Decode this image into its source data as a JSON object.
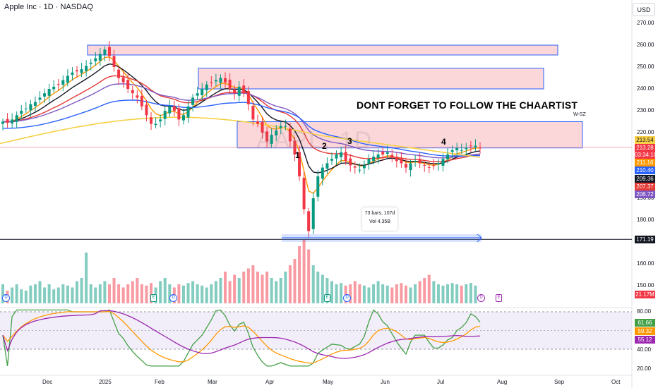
{
  "header": {
    "symbol_title": "Apple Inc · 1D · NASDAQ",
    "currency": "USD"
  },
  "annotations": {
    "promo": "DONT FORGET TO FOLLOW THE CHAARTIST",
    "ws_tag": "W-SZ",
    "watermark": "AAPL, 1D"
  },
  "waves": [
    "1",
    "2",
    "3",
    "4"
  ],
  "measure": {
    "bars": "73 bars, 107d",
    "vol": "Vol 4.35B"
  },
  "price_axis": {
    "ticks": [
      "270.00",
      "260.00",
      "250.00",
      "240.00",
      "230.00",
      "220.00",
      "190.00",
      "180.00",
      "160.00",
      "150.00"
    ]
  },
  "price_tags": [
    {
      "text": "213.54",
      "color": "#f7d046"
    },
    {
      "text": "213.28",
      "color": "#f23645"
    },
    {
      "text": "03:34:18",
      "color": "#f23645"
    },
    {
      "text": "211.16",
      "color": "#ff9800"
    },
    {
      "text": "210.40",
      "color": "#2962ff"
    },
    {
      "text": "209.36",
      "color": "#131722"
    },
    {
      "text": "207.37",
      "color": "#e53935"
    },
    {
      "text": "206.72",
      "color": "#7e57c2"
    },
    {
      "text": "171.19",
      "color": "#131722"
    },
    {
      "text": "21.17M",
      "color": "#f23645"
    }
  ],
  "rsi_axis": {
    "ticks": [
      "80.00",
      "40.00",
      "20.00"
    ]
  },
  "rsi_tags": [
    {
      "text": "61.66",
      "color": "#43a047"
    },
    {
      "text": "59.32",
      "color": "#ff9800"
    },
    {
      "text": "55.12",
      "color": "#9c27b0"
    }
  ],
  "time_axis": {
    "ticks": [
      "Dec",
      "2025",
      "Feb",
      "Mar",
      "Apr",
      "May",
      "Jun",
      "Jul",
      "Aug",
      "Sep",
      "Oct"
    ]
  },
  "events": {
    "dividend": "D",
    "earnings": "E"
  },
  "colors": {
    "up": "#089981",
    "down": "#f23645",
    "zone_fill": "rgba(242,54,69,0.2)",
    "zone_border": "#2962ff",
    "rsi_band": "rgba(126,87,194,0.1)"
  },
  "chart_data": {
    "type": "candlestick",
    "ylim": [
      165,
      275
    ],
    "horizontal_line": 171.19,
    "supply_zones": [
      [
        255.5,
        260
      ],
      [
        240,
        249.5
      ],
      [
        213,
        225
      ]
    ],
    "waves_price": [
      {
        "label": "1",
        "x": 60,
        "y": 204
      },
      {
        "label": "2",
        "x": 64,
        "y": 210
      },
      {
        "label": "3",
        "x": 68,
        "y": 213
      },
      {
        "label": "4",
        "x": 85,
        "y": 215
      }
    ],
    "close": [
      225,
      224.5,
      226,
      228,
      230,
      231,
      233,
      234,
      236,
      238,
      240,
      241,
      242,
      244,
      246,
      247.5,
      248,
      249,
      250.5,
      252,
      254,
      256,
      258,
      255,
      250,
      245,
      243,
      240,
      238,
      236,
      232,
      228,
      224,
      224,
      226,
      230,
      232,
      230,
      226,
      228,
      232,
      236,
      238,
      240,
      242,
      243,
      244,
      245,
      243,
      240,
      238,
      241,
      238,
      233,
      226,
      224,
      220,
      216,
      219,
      221,
      223,
      223,
      216,
      210,
      200,
      185,
      175,
      190,
      200,
      204,
      206,
      208,
      210,
      211,
      207,
      205,
      204,
      203,
      205,
      208,
      209,
      210,
      210,
      211,
      209,
      207,
      206,
      204,
      206,
      207,
      206,
      205,
      204,
      205,
      206,
      208,
      210,
      212,
      213,
      212,
      213,
      214,
      214,
      213
    ],
    "volume_rel": [
      0.3,
      0.2,
      0.25,
      0.3,
      0.22,
      0.2,
      0.28,
      0.3,
      0.35,
      0.25,
      0.3,
      0.22,
      0.25,
      0.3,
      0.28,
      0.25,
      0.35,
      0.4,
      0.8,
      0.3,
      0.25,
      0.3,
      0.35,
      0.3,
      0.4,
      0.3,
      0.25,
      0.3,
      0.35,
      0.4,
      0.3,
      0.28,
      0.32,
      0.25,
      0.35,
      0.4,
      0.3,
      0.25,
      0.3,
      0.28,
      0.32,
      0.35,
      0.3,
      0.28,
      0.25,
      0.3,
      0.35,
      0.4,
      0.5,
      0.35,
      0.45,
      0.4,
      0.5,
      0.55,
      0.6,
      0.5,
      0.45,
      0.5,
      0.4,
      0.35,
      0.4,
      0.5,
      0.6,
      0.7,
      0.9,
      1.0,
      0.85,
      0.6,
      0.5,
      0.45,
      0.4,
      0.35,
      0.3,
      0.32,
      0.28,
      0.3,
      0.35,
      0.3,
      0.28,
      0.25,
      0.3,
      0.35,
      0.3,
      0.28,
      0.25,
      0.3,
      0.32,
      0.28,
      0.25,
      0.3,
      0.35,
      0.4,
      0.45,
      0.35,
      0.3,
      0.28,
      0.3,
      0.32,
      0.3,
      0.28,
      0.3,
      0.32,
      0.28
    ],
    "rsi_range": [
      20,
      90
    ]
  }
}
